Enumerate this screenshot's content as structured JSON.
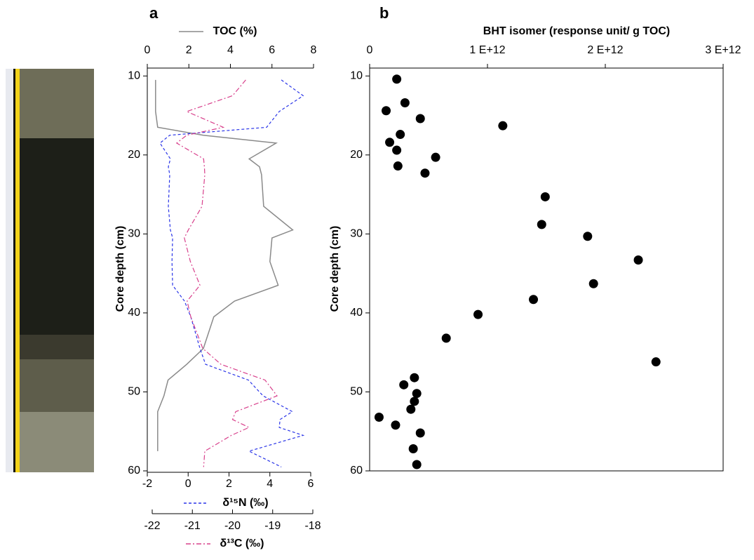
{
  "chart_data": [
    {
      "type": "line",
      "title": "a",
      "ylabel": "Core depth (cm)",
      "invert_y": true,
      "ylim": [
        9,
        60
      ],
      "yticks": [
        10,
        20,
        30,
        40,
        50,
        60
      ],
      "y": [
        10.5,
        12.5,
        14.5,
        16.5,
        17.5,
        18.5,
        20.5,
        21.5,
        22.5,
        26.5,
        29.5,
        30.5,
        33.5,
        36.5,
        38.5,
        40.5,
        44.5,
        46.5,
        48.5,
        50.5,
        52.5,
        53.5,
        54.5,
        55.5,
        57.5,
        59.5
      ],
      "xlim": [
        0,
        8
      ],
      "xticks": [
        0,
        2,
        4,
        6,
        8
      ],
      "x2lim": [
        -2,
        6
      ],
      "x2ticks": [
        -2,
        0,
        2,
        4,
        6
      ],
      "x3lim": [
        -22,
        -18
      ],
      "x3ticks": [
        -22,
        -21,
        -20,
        -19,
        -18
      ],
      "series": [
        {
          "name": "TOC (%)",
          "color": "#8a8a8a",
          "dash": "solid",
          "axis": "x",
          "values": [
            0.4,
            0.4,
            0.4,
            0.5,
            2.7,
            6.2,
            4.9,
            5.4,
            5.5,
            5.6,
            7.0,
            6.0,
            5.9,
            6.3,
            4.2,
            3.2,
            2.7,
            1.9,
            1.0,
            0.8,
            0.5,
            0.5,
            0.5,
            0.5,
            0.5,
            null
          ]
        },
        {
          "name": "δ¹⁵N (‰)",
          "color": "#2a35e8",
          "dash": "dashed",
          "axis": "x2",
          "values": [
            4.56,
            5.63,
            4.46,
            3.84,
            -0.9,
            -1.38,
            -0.87,
            -0.97,
            -0.9,
            -0.97,
            -0.87,
            -0.76,
            -0.79,
            -0.76,
            -0.18,
            0.13,
            0.58,
            0.85,
            2.95,
            3.67,
            5.1,
            4.5,
            4.46,
            5.63,
            2.98,
            4.56
          ]
        },
        {
          "name": "δ¹³C (‰)",
          "color": "#d8408c",
          "dash": "dashdot",
          "axis": "x3",
          "values": [
            -19.67,
            -20.0,
            -21.14,
            -20.23,
            -21.14,
            -21.39,
            -20.72,
            -20.7,
            -20.69,
            -20.76,
            -21.1,
            -21.2,
            -21.05,
            -20.81,
            -21.13,
            -21.04,
            -20.74,
            -20.29,
            -19.19,
            -18.89,
            -19.92,
            -20.0,
            -19.59,
            -20.03,
            -20.69,
            -20.72
          ]
        }
      ]
    },
    {
      "type": "scatter",
      "title": "b",
      "xlabel": "BHT isomer (response unit/ g TOC)",
      "ylabel": "Core depth (cm)",
      "invert_y": true,
      "color": "#000000",
      "xlim": [
        0,
        3000000000000.0
      ],
      "xticks": [
        0,
        {
          "value": 1000000000000.0,
          "label": "1 E+12"
        },
        {
          "value": 2000000000000.0,
          "label": "2 E+12"
        },
        {
          "value": 3000000000000.0,
          "label": "3 E+12"
        }
      ],
      "ylim": [
        9,
        60
      ],
      "yticks": [
        10,
        20,
        30,
        40,
        50,
        60
      ],
      "x": [
        230000000000.0,
        140000000000.0,
        300000000000.0,
        430000000000.0,
        1130000000000.0,
        260000000000.0,
        170000000000.0,
        230000000000.0,
        560000000000.0,
        240000000000.0,
        470000000000.0,
        1490000000000.0,
        1460000000000.0,
        1850000000000.0,
        2280000000000.0,
        1900000000000.0,
        1390000000000.0,
        920000000000.0,
        650000000000.0,
        2430000000000.0,
        380000000000.0,
        290000000000.0,
        400000000000.0,
        380000000000.0,
        350000000000.0,
        80000000000.0,
        220000000000.0,
        430000000000.0,
        370000000000.0,
        400000000000.0
      ],
      "y": [
        10.4,
        14.4,
        13.4,
        15.4,
        16.3,
        17.4,
        18.4,
        19.4,
        20.3,
        21.4,
        22.3,
        25.3,
        28.8,
        30.3,
        33.3,
        36.3,
        38.3,
        40.2,
        43.2,
        46.2,
        48.2,
        49.1,
        50.2,
        51.2,
        52.2,
        53.2,
        54.2,
        55.2,
        57.2,
        59.2
      ]
    }
  ]
}
